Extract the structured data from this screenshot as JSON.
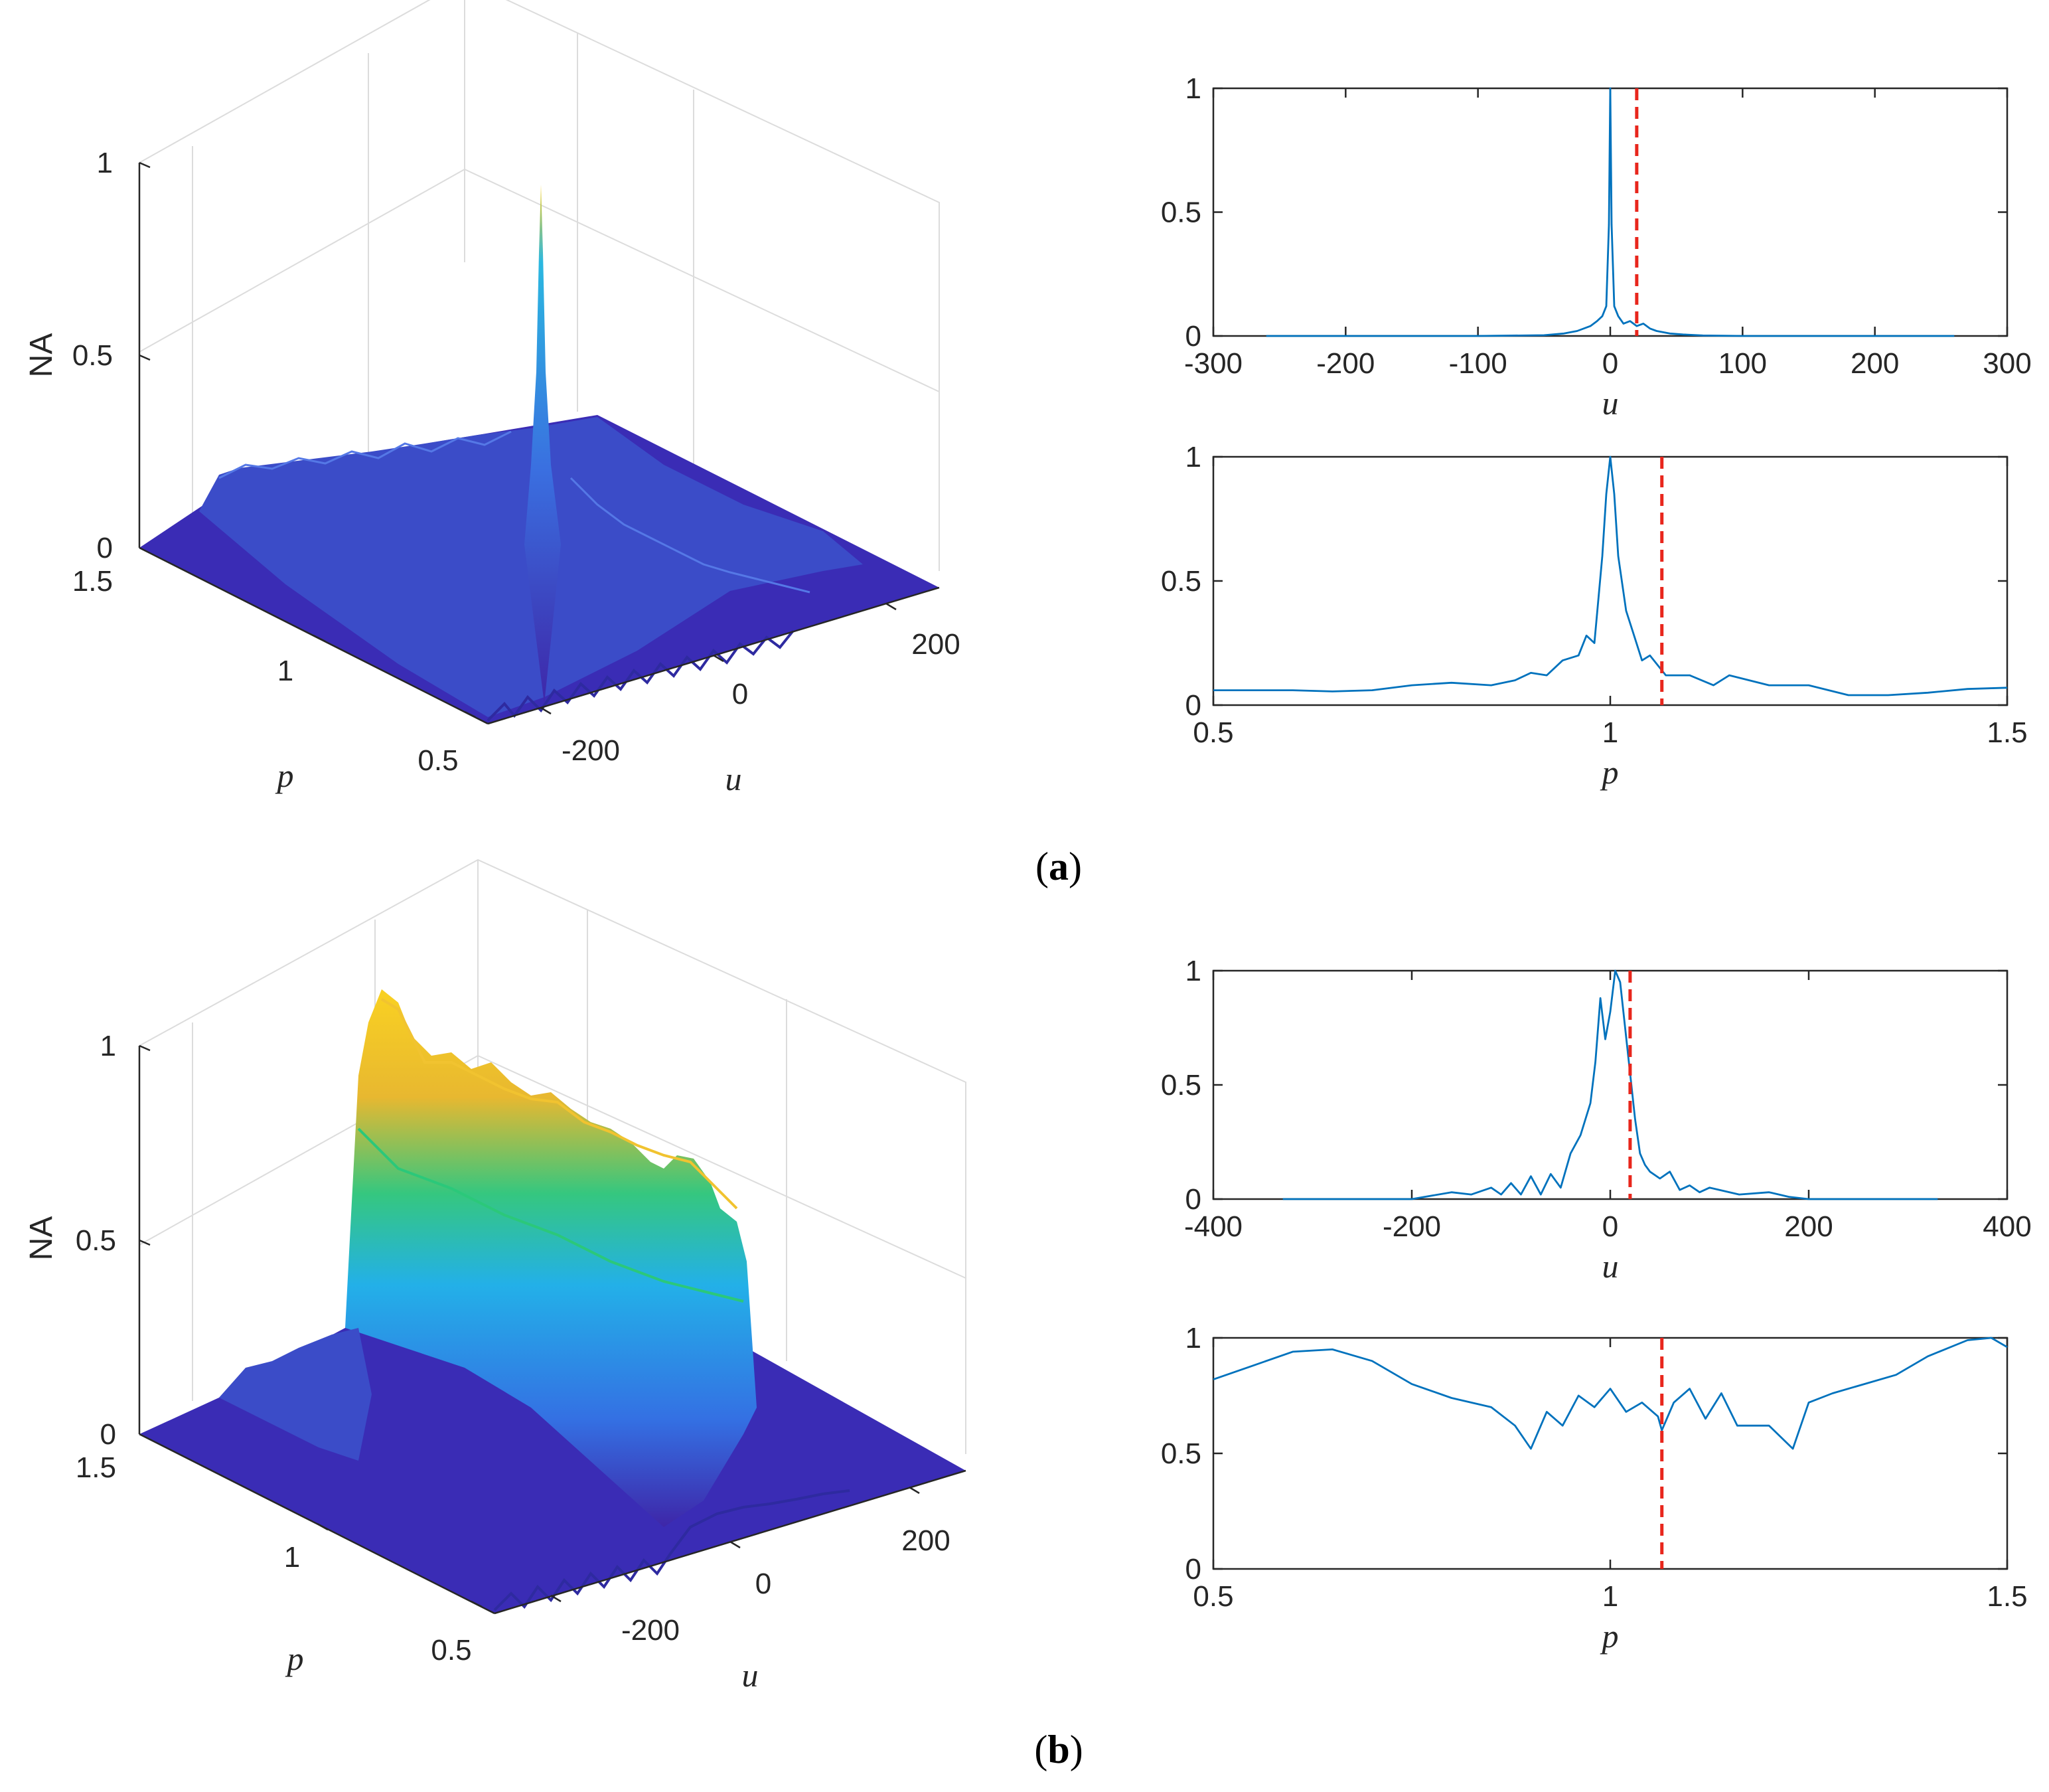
{
  "captions": {
    "a": {
      "open": "(",
      "letter": "a",
      "close": ")"
    },
    "b": {
      "open": "(",
      "letter": "b",
      "close": ")"
    }
  },
  "colors": {
    "line": "#0072BD",
    "cut": "#E8261C",
    "surface_low": "#3E26A8",
    "surface_mid": "#23B0E8",
    "surface_green": "#2BC87A",
    "surface_high": "#F9D122",
    "axis": "#262626",
    "grid": "#e3e3e3"
  },
  "chart_data": [
    {
      "id": "a-3d",
      "type": "surface3d",
      "zlabel": "NA",
      "xlabel": "p",
      "ylabel": "u",
      "z_ticks": [
        "0",
        "0.5",
        "1"
      ],
      "p_ticks": [
        "1.5",
        "1",
        "0.5"
      ],
      "u_ticks": [
        "-200",
        "0",
        "200"
      ],
      "zlim": [
        0,
        1
      ],
      "plim": [
        0.5,
        1.5
      ],
      "ulim": [
        -300,
        300
      ],
      "peak": {
        "p": 1.0,
        "u": 0,
        "value": 1.0
      },
      "plateau_level": 0.12,
      "description_series": "narrow peak at p=1, u=0 over low ridged plateau"
    },
    {
      "id": "a-u",
      "type": "line",
      "xlabel": "u",
      "ylabel": "",
      "xlim": [
        -300,
        300
      ],
      "ylim": [
        0,
        1
      ],
      "x_ticks": [
        "-300",
        "-200",
        "-100",
        "0",
        "100",
        "200",
        "300"
      ],
      "y_ticks": [
        "0",
        "0.5",
        "1"
      ],
      "cut_x": 20,
      "x": [
        -260,
        -100,
        -50,
        -35,
        -25,
        -15,
        -10,
        -6,
        -3,
        -1,
        0,
        1,
        3,
        6,
        10,
        15,
        20,
        25,
        30,
        35,
        45,
        55,
        70,
        100,
        260
      ],
      "y": [
        0.0,
        0.0,
        0.003,
        0.01,
        0.02,
        0.04,
        0.06,
        0.08,
        0.12,
        0.45,
        1.0,
        0.45,
        0.12,
        0.08,
        0.05,
        0.06,
        0.04,
        0.05,
        0.03,
        0.02,
        0.01,
        0.006,
        0.002,
        0.0,
        0.0
      ]
    },
    {
      "id": "a-p",
      "type": "line",
      "xlabel": "p",
      "ylabel": "",
      "xlim": [
        0.5,
        1.5
      ],
      "ylim": [
        0,
        1
      ],
      "x_ticks": [
        "0.5",
        "1",
        "1.5"
      ],
      "y_ticks": [
        "0",
        "0.5",
        "1"
      ],
      "cut_x": 1.065,
      "x": [
        0.5,
        0.55,
        0.6,
        0.65,
        0.7,
        0.75,
        0.8,
        0.85,
        0.88,
        0.9,
        0.92,
        0.94,
        0.96,
        0.97,
        0.98,
        0.99,
        0.995,
        1.0,
        1.005,
        1.01,
        1.02,
        1.03,
        1.04,
        1.05,
        1.07,
        1.1,
        1.13,
        1.15,
        1.2,
        1.25,
        1.3,
        1.35,
        1.4,
        1.45,
        1.5
      ],
      "y": [
        0.06,
        0.06,
        0.06,
        0.055,
        0.06,
        0.08,
        0.09,
        0.08,
        0.1,
        0.13,
        0.12,
        0.18,
        0.2,
        0.28,
        0.25,
        0.6,
        0.85,
        1.0,
        0.85,
        0.6,
        0.38,
        0.28,
        0.18,
        0.2,
        0.12,
        0.12,
        0.08,
        0.12,
        0.08,
        0.08,
        0.04,
        0.04,
        0.05,
        0.065,
        0.07
      ]
    },
    {
      "id": "b-3d",
      "type": "surface3d",
      "zlabel": "NA",
      "xlabel": "p",
      "ylabel": "u",
      "z_ticks": [
        "0",
        "0.5",
        "1"
      ],
      "p_ticks": [
        "1.5",
        "1",
        "0.5"
      ],
      "u_ticks": [
        "-200",
        "0",
        "200"
      ],
      "zlim": [
        0,
        1
      ],
      "plim": [
        0.5,
        1.5
      ],
      "ulim": [
        -300,
        300
      ],
      "ridge_level": 1.0,
      "description_series": "broad ridge around u=0 along all p, colored yellow at top"
    },
    {
      "id": "b-u",
      "type": "line",
      "xlabel": "u",
      "ylabel": "",
      "xlim": [
        -400,
        400
      ],
      "ylim": [
        0,
        1
      ],
      "x_ticks": [
        "-400",
        "-200",
        "0",
        "200",
        "400"
      ],
      "y_ticks": [
        "0",
        "0.5",
        "1"
      ],
      "cut_x": 20,
      "x": [
        -330,
        -200,
        -160,
        -140,
        -120,
        -110,
        -100,
        -90,
        -80,
        -70,
        -60,
        -50,
        -40,
        -30,
        -20,
        -15,
        -10,
        -5,
        0,
        5,
        10,
        15,
        20,
        25,
        30,
        35,
        40,
        50,
        60,
        70,
        80,
        90,
        100,
        130,
        160,
        180,
        200,
        330
      ],
      "y": [
        0.0,
        0.0,
        0.03,
        0.02,
        0.05,
        0.02,
        0.07,
        0.02,
        0.1,
        0.02,
        0.11,
        0.05,
        0.2,
        0.28,
        0.42,
        0.6,
        0.88,
        0.7,
        0.82,
        1.0,
        0.95,
        0.75,
        0.55,
        0.35,
        0.2,
        0.15,
        0.12,
        0.09,
        0.12,
        0.04,
        0.06,
        0.03,
        0.05,
        0.02,
        0.03,
        0.01,
        0.0,
        0.0
      ]
    },
    {
      "id": "b-p",
      "type": "line",
      "xlabel": "p",
      "ylabel": "",
      "xlim": [
        0.5,
        1.5
      ],
      "ylim": [
        0,
        1
      ],
      "x_ticks": [
        "0.5",
        "1",
        "1.5"
      ],
      "y_ticks": [
        "0",
        "0.5",
        "1"
      ],
      "cut_x": 1.065,
      "x": [
        0.5,
        0.55,
        0.6,
        0.65,
        0.7,
        0.75,
        0.8,
        0.85,
        0.88,
        0.9,
        0.92,
        0.94,
        0.96,
        0.98,
        1.0,
        1.02,
        1.04,
        1.06,
        1.065,
        1.08,
        1.1,
        1.12,
        1.14,
        1.16,
        1.2,
        1.23,
        1.25,
        1.28,
        1.32,
        1.36,
        1.4,
        1.45,
        1.48,
        1.5
      ],
      "y": [
        0.82,
        0.88,
        0.94,
        0.95,
        0.9,
        0.8,
        0.74,
        0.7,
        0.62,
        0.52,
        0.68,
        0.62,
        0.75,
        0.7,
        0.78,
        0.68,
        0.72,
        0.66,
        0.6,
        0.72,
        0.78,
        0.65,
        0.76,
        0.62,
        0.62,
        0.52,
        0.72,
        0.76,
        0.8,
        0.84,
        0.92,
        0.99,
        1.0,
        0.96
      ]
    }
  ]
}
